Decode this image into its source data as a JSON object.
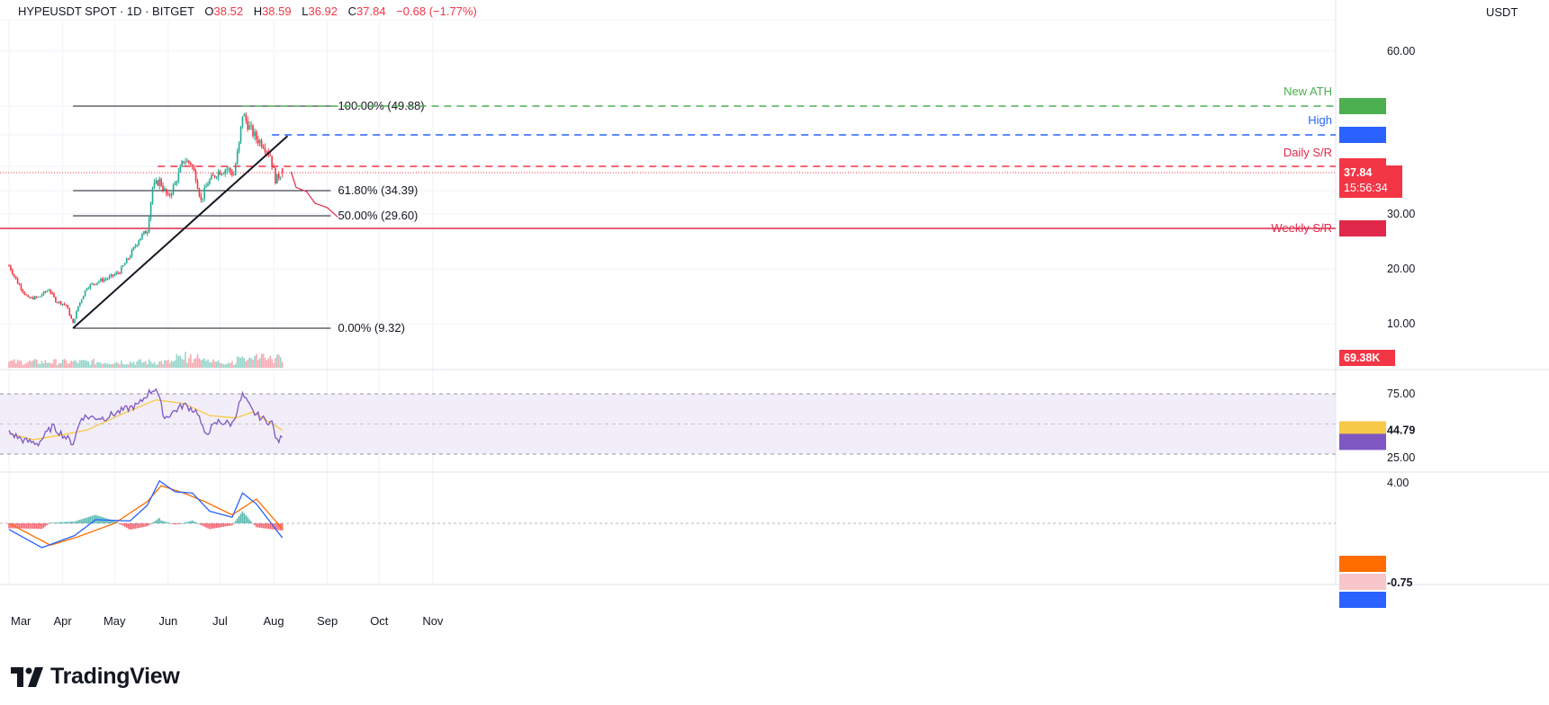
{
  "header": {
    "symbol": "HYPEUSDT SPOT · 1D · BITGET",
    "open_label": "O",
    "open": "38.52",
    "high_label": "H",
    "high": "38.59",
    "low_label": "L",
    "low": "36.92",
    "close_label": "C",
    "close": "37.84",
    "change": "−0.68 (−1.77%)"
  },
  "unit": "USDT",
  "brand": "TradingView",
  "colors": {
    "up": "#22ab94",
    "down": "#f23645",
    "ath": "#4caf50",
    "high": "#2962ff",
    "sr": "#f23645",
    "rsi": "#7e57c2",
    "rsi_ma": "#f7c948",
    "macd": "#2962ff",
    "signal": "#ff6d00"
  },
  "chart_data": {
    "type": "candlestick",
    "x_tick_labels": [
      "Mar",
      "Apr",
      "May",
      "Jun",
      "Jul",
      "Aug",
      "Sep",
      "Oct",
      "Nov"
    ],
    "y_tick_labels": [
      "60.00",
      "30.00",
      "20.00",
      "10.00"
    ],
    "ylim": [
      9,
      64
    ],
    "close_path": [
      {
        "date": "2025-03-01",
        "close": 20.6
      },
      {
        "date": "2025-03-06",
        "close": 17.5
      },
      {
        "date": "2025-03-12",
        "close": 14.6
      },
      {
        "date": "2025-03-18",
        "close": 14.8
      },
      {
        "date": "2025-03-24",
        "close": 16.3
      },
      {
        "date": "2025-03-28",
        "close": 14.2
      },
      {
        "date": "2025-04-03",
        "close": 13.4
      },
      {
        "date": "2025-04-07",
        "close": 10.0
      },
      {
        "date": "2025-04-10",
        "close": 13.2
      },
      {
        "date": "2025-04-15",
        "close": 16.7
      },
      {
        "date": "2025-04-22",
        "close": 17.8
      },
      {
        "date": "2025-04-28",
        "close": 18.4
      },
      {
        "date": "2025-05-04",
        "close": 19.5
      },
      {
        "date": "2025-05-10",
        "close": 22.5
      },
      {
        "date": "2025-05-15",
        "close": 25.5
      },
      {
        "date": "2025-05-20",
        "close": 27.2
      },
      {
        "date": "2025-05-23",
        "close": 35.0
      },
      {
        "date": "2025-05-27",
        "close": 36.3
      },
      {
        "date": "2025-06-01",
        "close": 33.0
      },
      {
        "date": "2025-06-05",
        "close": 35.8
      },
      {
        "date": "2025-06-10",
        "close": 40.0
      },
      {
        "date": "2025-06-14",
        "close": 39.5
      },
      {
        "date": "2025-06-17",
        "close": 37.0
      },
      {
        "date": "2025-06-20",
        "close": 32.5
      },
      {
        "date": "2025-06-24",
        "close": 36.0
      },
      {
        "date": "2025-06-30",
        "close": 38.0
      },
      {
        "date": "2025-07-05",
        "close": 38.5
      },
      {
        "date": "2025-07-09",
        "close": 37.5
      },
      {
        "date": "2025-07-12",
        "close": 43.0
      },
      {
        "date": "2025-07-14",
        "close": 48.5
      },
      {
        "date": "2025-07-18",
        "close": 46.0
      },
      {
        "date": "2025-07-22",
        "close": 44.0
      },
      {
        "date": "2025-07-26",
        "close": 43.0
      },
      {
        "date": "2025-07-30",
        "close": 41.0
      },
      {
        "date": "2025-08-02",
        "close": 36.5
      },
      {
        "date": "2025-08-06",
        "close": 37.84
      }
    ],
    "price_level_labels": [
      {
        "label": "New ATH",
        "value": "49.88"
      },
      {
        "label": "High",
        "value": "44.70"
      },
      {
        "label": "Daily S/R",
        "value": "38.87"
      },
      {
        "label": "Weekly S/R",
        "value": "27.49"
      }
    ],
    "last_price": {
      "value": "37.84",
      "countdown": "15:56:34"
    },
    "fibonacci": [
      {
        "label": "100.00% (49.88)",
        "value": 49.88
      },
      {
        "label": "61.80% (34.39)",
        "value": 34.39
      },
      {
        "label": "50.00% (29.60)",
        "value": 29.6
      },
      {
        "label": "0.00% (9.32)",
        "value": 9.32
      }
    ],
    "trendline": {
      "from": {
        "date": "2025-04-07",
        "value": 9.32
      },
      "to": {
        "date": "2025-08-09",
        "value": 44.5
      }
    },
    "projection": [
      {
        "date": "2025-08-11",
        "value": 38.0
      },
      {
        "date": "2025-08-14",
        "value": 35.0
      },
      {
        "date": "2025-08-20",
        "value": 34.2
      },
      {
        "date": "2025-08-25",
        "value": 32.0
      },
      {
        "date": "2025-09-01",
        "value": 31.2
      },
      {
        "date": "2025-09-07",
        "value": 29.4
      }
    ],
    "volume": {
      "last_label": "69.38K"
    },
    "rsi": {
      "levels": [
        "75.00",
        "25.00"
      ],
      "rsi_label": "38.88",
      "ma_label": "44.79",
      "rsi_path": [
        {
          "date": "2025-03-01",
          "value": 43
        },
        {
          "date": "2025-03-10",
          "value": 36
        },
        {
          "date": "2025-03-18",
          "value": 34
        },
        {
          "date": "2025-03-26",
          "value": 48
        },
        {
          "date": "2025-04-02",
          "value": 40
        },
        {
          "date": "2025-04-07",
          "value": 34
        },
        {
          "date": "2025-04-12",
          "value": 56
        },
        {
          "date": "2025-04-25",
          "value": 55
        },
        {
          "date": "2025-05-05",
          "value": 61
        },
        {
          "date": "2025-05-15",
          "value": 66
        },
        {
          "date": "2025-05-20",
          "value": 75
        },
        {
          "date": "2025-05-25",
          "value": 80
        },
        {
          "date": "2025-05-30",
          "value": 55
        },
        {
          "date": "2025-06-10",
          "value": 66
        },
        {
          "date": "2025-06-18",
          "value": 60
        },
        {
          "date": "2025-06-22",
          "value": 41
        },
        {
          "date": "2025-06-30",
          "value": 52
        },
        {
          "date": "2025-07-08",
          "value": 50
        },
        {
          "date": "2025-07-14",
          "value": 74
        },
        {
          "date": "2025-07-20",
          "value": 60
        },
        {
          "date": "2025-07-26",
          "value": 54
        },
        {
          "date": "2025-07-31",
          "value": 51
        },
        {
          "date": "2025-08-03",
          "value": 35
        },
        {
          "date": "2025-08-06",
          "value": 38.88
        }
      ],
      "ma_path": [
        {
          "date": "2025-03-01",
          "value": 42
        },
        {
          "date": "2025-03-15",
          "value": 37
        },
        {
          "date": "2025-04-01",
          "value": 41
        },
        {
          "date": "2025-04-15",
          "value": 45
        },
        {
          "date": "2025-05-05",
          "value": 58
        },
        {
          "date": "2025-05-25",
          "value": 70
        },
        {
          "date": "2025-06-10",
          "value": 67
        },
        {
          "date": "2025-06-25",
          "value": 57
        },
        {
          "date": "2025-07-10",
          "value": 55
        },
        {
          "date": "2025-07-20",
          "value": 60
        },
        {
          "date": "2025-08-06",
          "value": 44.79
        }
      ]
    },
    "macd": {
      "levels": [
        "4.00"
      ],
      "macd_label": "-1.19",
      "signal_label": "-0.44",
      "hist_label": "-0.75"
    }
  }
}
